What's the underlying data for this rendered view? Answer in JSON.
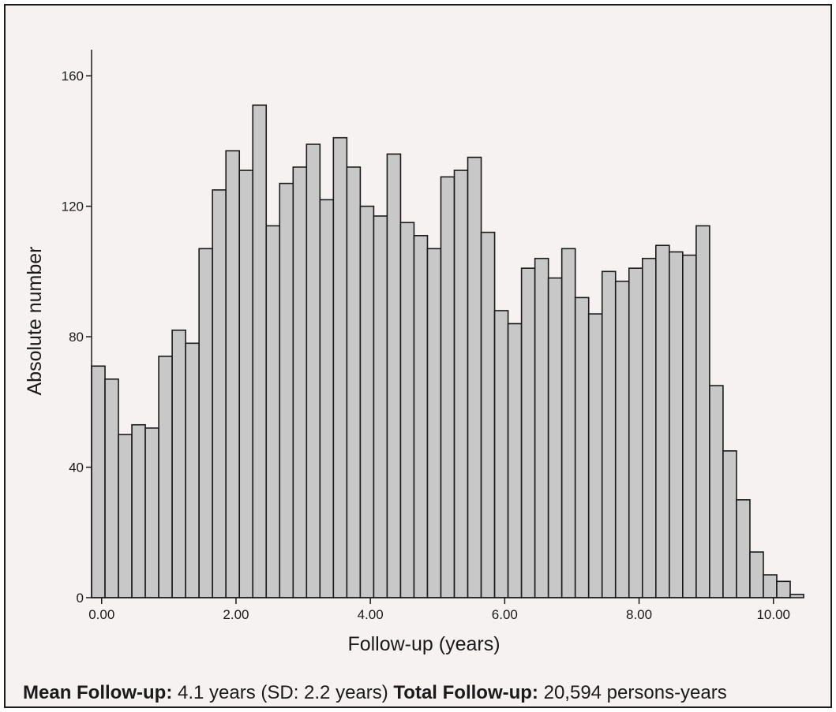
{
  "chart_data": {
    "type": "bar",
    "subtype": "histogram",
    "xlabel": "Follow-up (years)",
    "ylabel": "Absolute number",
    "xlim": [
      -0.15,
      10.25
    ],
    "ylim": [
      0,
      168
    ],
    "x_ticks": [
      0,
      2,
      4,
      6,
      8,
      10
    ],
    "x_tick_labels": [
      "0.00",
      "2.00",
      "4.00",
      "6.00",
      "8.00",
      "10.00"
    ],
    "y_ticks": [
      0,
      40,
      80,
      120,
      160
    ],
    "y_tick_labels": [
      "0",
      "40",
      "80",
      "120",
      "160"
    ],
    "bin_start": -0.15,
    "bin_width": 0.2,
    "values": [
      71,
      67,
      50,
      53,
      52,
      74,
      82,
      78,
      107,
      125,
      137,
      131,
      151,
      114,
      127,
      132,
      139,
      122,
      141,
      132,
      120,
      117,
      136,
      115,
      111,
      107,
      129,
      131,
      135,
      112,
      88,
      84,
      101,
      104,
      98,
      107,
      92,
      87,
      100,
      97,
      101,
      104,
      108,
      106,
      105,
      114,
      65,
      45,
      30,
      14,
      7,
      5,
      1
    ],
    "bar_color": "#c8c8c8",
    "bar_edge_color": "#1a1a1a",
    "background_color": "#f7f2f2",
    "grid": false,
    "legend": false
  },
  "caption": {
    "mean_label": "Mean Follow-up:",
    "mean_text": " 4.1 years (SD: 2.2 years) ",
    "total_label": "Total Follow-up:",
    "total_text": " 20,594 persons-years"
  }
}
